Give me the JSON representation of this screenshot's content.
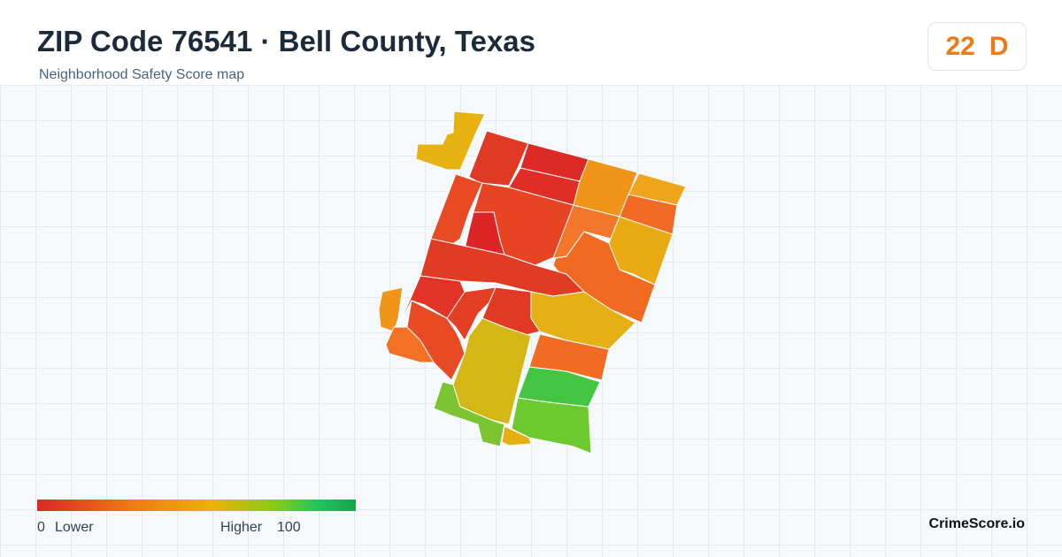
{
  "header": {
    "title": "ZIP Code 76541 · Bell County, Texas",
    "subtitle": "Neighborhood Safety Score map"
  },
  "score": {
    "value": 22,
    "grade": "D"
  },
  "legend": {
    "min": 0,
    "min_label": "Lower",
    "max_label": "Higher",
    "max": 100
  },
  "brand": "CrimeScore.io"
}
